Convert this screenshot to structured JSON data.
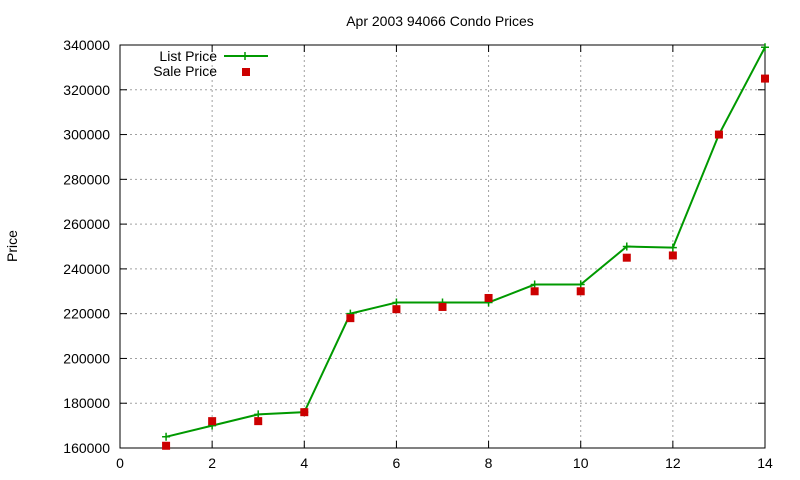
{
  "chart_data": {
    "type": "line",
    "title": "Apr 2003 94066 Condo Prices",
    "xlabel": "",
    "ylabel": "Price",
    "xlim": [
      0,
      14
    ],
    "ylim": [
      160000,
      340000
    ],
    "xticks": [
      0,
      2,
      4,
      6,
      8,
      10,
      12,
      14
    ],
    "yticks": [
      160000,
      180000,
      200000,
      220000,
      240000,
      260000,
      280000,
      300000,
      320000,
      340000
    ],
    "grid": true,
    "legend_position": "top-left",
    "series": [
      {
        "name": "List Price",
        "style": "line-plus",
        "color": "#009900",
        "x": [
          1,
          2,
          3,
          4,
          5,
          6,
          7,
          8,
          9,
          10,
          11,
          12,
          13,
          14
        ],
        "values": [
          165000,
          170000,
          175000,
          176000,
          220000,
          225000,
          225000,
          225000,
          233000,
          233000,
          250000,
          249500,
          300000,
          339000
        ]
      },
      {
        "name": "Sale Price",
        "style": "square",
        "color": "#cc0000",
        "x": [
          1,
          2,
          3,
          4,
          5,
          6,
          7,
          8,
          9,
          10,
          11,
          12,
          13,
          14
        ],
        "values": [
          161000,
          172000,
          172000,
          176000,
          218000,
          222000,
          223000,
          227000,
          230000,
          230000,
          245000,
          246000,
          300000,
          325000
        ]
      }
    ]
  }
}
